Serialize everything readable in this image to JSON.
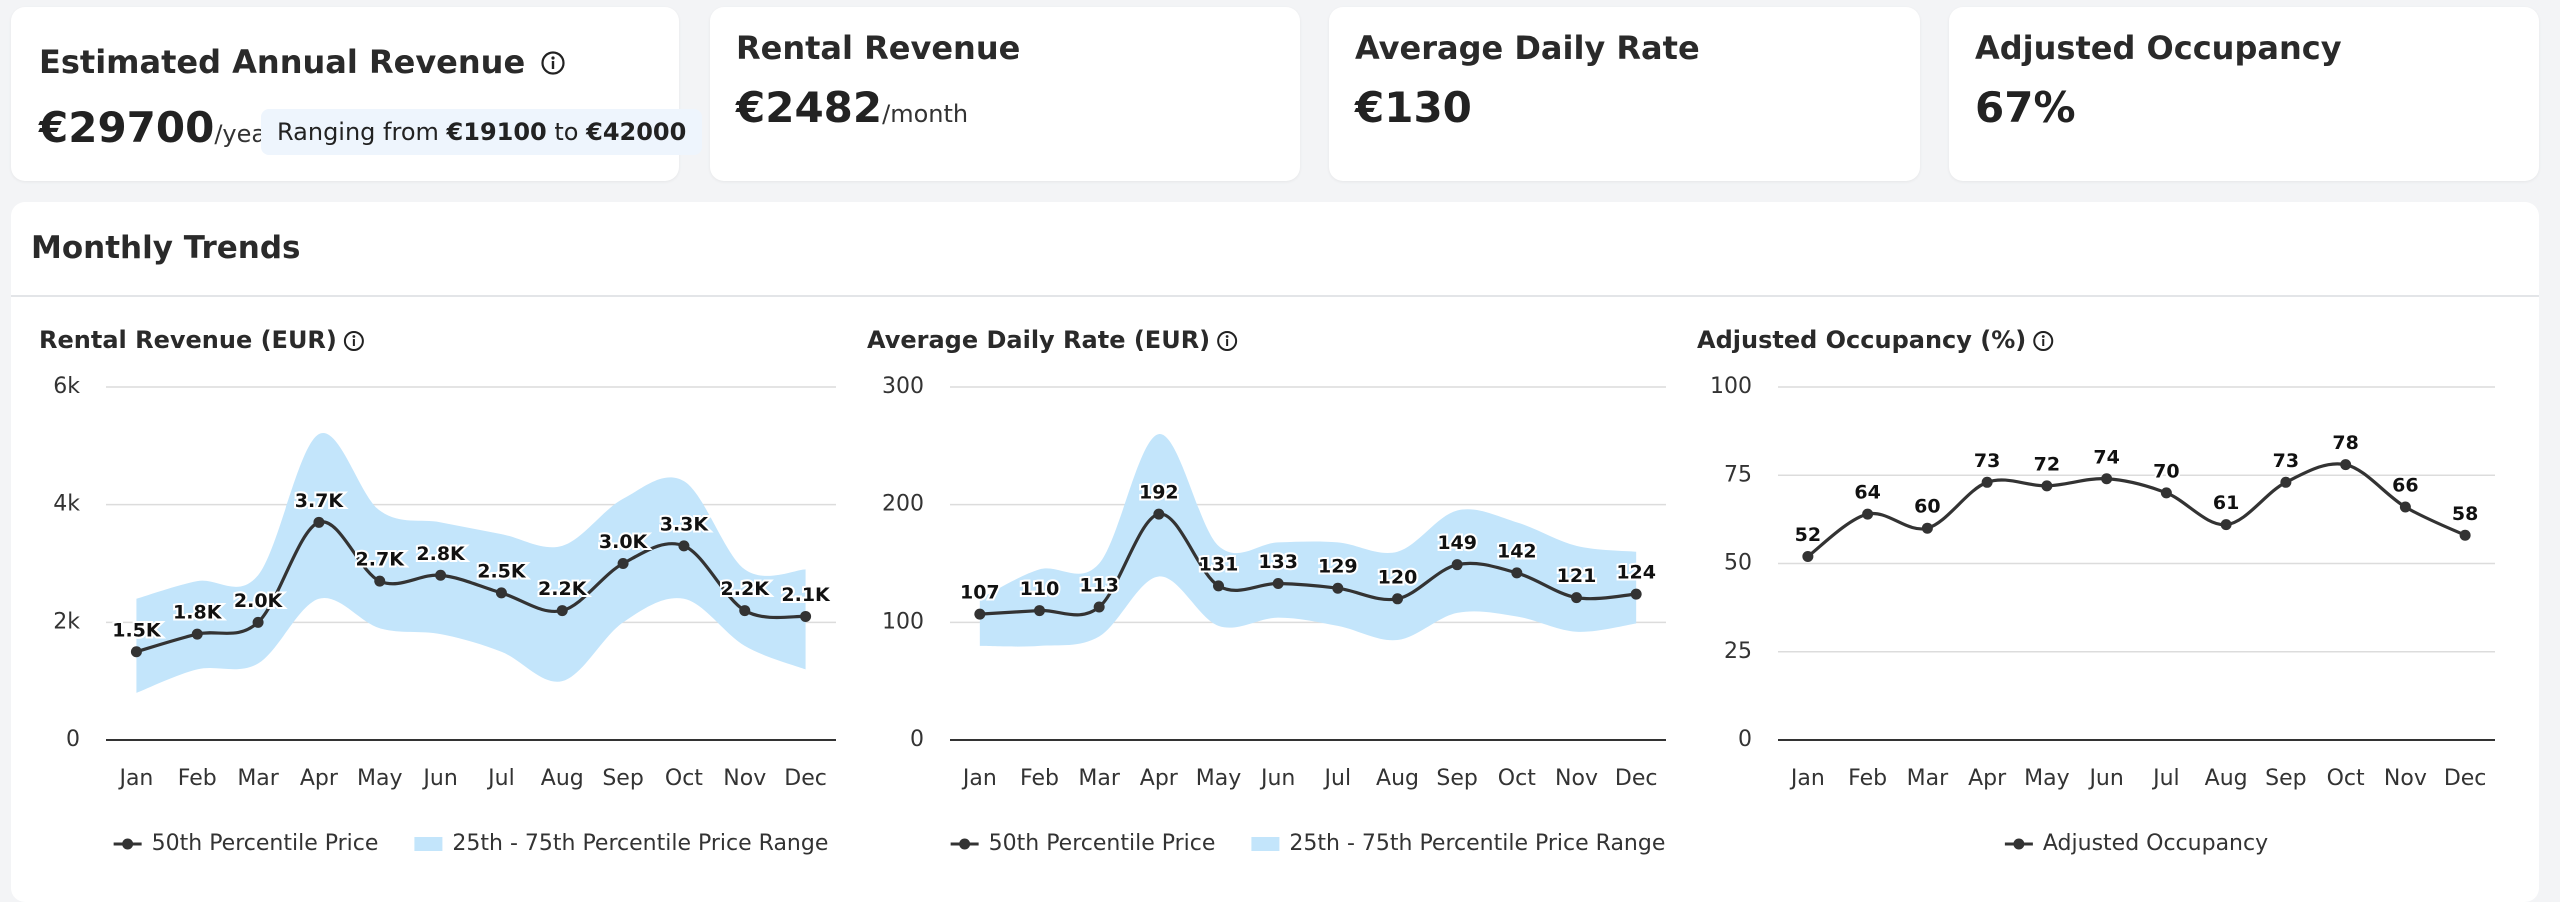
{
  "kpis": [
    {
      "title": "Estimated Annual Revenue",
      "value": "€29700",
      "unit": "/year",
      "range": {
        "prefix": "Ranging from",
        "low": "€19100",
        "mid": "to",
        "high": "€42000"
      }
    },
    {
      "title": "Rental Revenue",
      "value": "€2482",
      "unit": "/month"
    },
    {
      "title": "Average Daily Rate",
      "value": "€130"
    },
    {
      "title": "Adjusted Occupancy",
      "value": "67%"
    }
  ],
  "section": {
    "title": "Monthly Trends"
  },
  "chart_data": [
    {
      "type": "line",
      "title": "Rental Revenue (EUR)",
      "categories": [
        "Jan",
        "Feb",
        "Mar",
        "Apr",
        "May",
        "Jun",
        "Jul",
        "Aug",
        "Sep",
        "Oct",
        "Nov",
        "Dec"
      ],
      "ylim": [
        0,
        6000
      ],
      "yticks": [
        0,
        {
          "value": 2000,
          "label": "2k"
        },
        {
          "value": 4000,
          "label": "4k"
        },
        {
          "value": 6000,
          "label": "6k"
        }
      ],
      "grid": true,
      "series": [
        {
          "name": "50th Percentile Price",
          "color": "#333333",
          "values": [
            1500,
            1800,
            2000,
            3700,
            2700,
            2800,
            2500,
            2200,
            3000,
            3300,
            2200,
            2100
          ],
          "value_labels": [
            "1.5K",
            "1.8K",
            "2.0K",
            "3.7K",
            "2.7K",
            "2.8K",
            "2.5K",
            "2.2K",
            "3.0K",
            "3.3K",
            "2.2K",
            "2.1K"
          ]
        },
        {
          "name": "25th - 75th Percentile Price Range",
          "color": "#c3e5fb",
          "lower": [
            800,
            1200,
            1300,
            2400,
            1900,
            1800,
            1500,
            1000,
            2000,
            2400,
            1600,
            1200
          ],
          "upper": [
            2400,
            2700,
            2800,
            5200,
            3900,
            3700,
            3500,
            3300,
            4100,
            4400,
            2900,
            2900
          ]
        }
      ]
    },
    {
      "type": "line",
      "title": "Average Daily Rate (EUR)",
      "categories": [
        "Jan",
        "Feb",
        "Mar",
        "Apr",
        "May",
        "Jun",
        "Jul",
        "Aug",
        "Sep",
        "Oct",
        "Nov",
        "Dec"
      ],
      "ylim": [
        0,
        300
      ],
      "yticks": [
        0,
        100,
        200,
        300
      ],
      "grid": true,
      "series": [
        {
          "name": "50th Percentile Price",
          "color": "#333333",
          "values": [
            107,
            110,
            113,
            192,
            131,
            133,
            129,
            120,
            149,
            142,
            121,
            124
          ]
        },
        {
          "name": "25th - 75th Percentile Price Range",
          "color": "#c3e5fb",
          "lower": [
            80,
            80,
            88,
            139,
            97,
            104,
            97,
            85,
            108,
            105,
            92,
            99
          ],
          "upper": [
            120,
            145,
            150,
            260,
            165,
            168,
            168,
            160,
            195,
            185,
            165,
            160
          ]
        }
      ]
    },
    {
      "type": "line",
      "title": "Adjusted Occupancy (%)",
      "categories": [
        "Jan",
        "Feb",
        "Mar",
        "Apr",
        "May",
        "Jun",
        "Jul",
        "Aug",
        "Sep",
        "Oct",
        "Nov",
        "Dec"
      ],
      "ylim": [
        0,
        100
      ],
      "yticks": [
        0,
        25,
        50,
        75,
        100
      ],
      "grid": true,
      "series": [
        {
          "name": "Adjusted Occupancy",
          "color": "#333333",
          "values": [
            52,
            64,
            60,
            73,
            72,
            74,
            70,
            61,
            73,
            78,
            66,
            58
          ]
        }
      ]
    }
  ]
}
